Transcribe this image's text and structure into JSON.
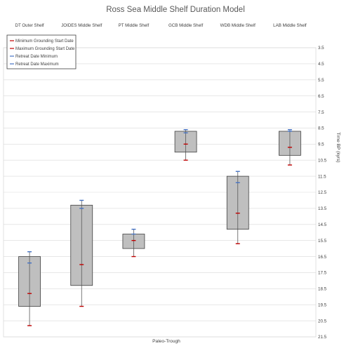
{
  "chart_data": {
    "type": "box",
    "title": "Ross Sea Middle Shelf Duration Model",
    "xlabel": "Paleo-Trough",
    "ylabel": "Time BP (kyrs)",
    "y_reversed": true,
    "y_axis_position": "right",
    "category_labels_position": "top",
    "ylim": [
      3.5,
      21.5
    ],
    "yticks": [
      "3.5",
      "4.5",
      "5.5",
      "6.5",
      "7.5",
      "8.5",
      "9.5",
      "10.5",
      "11.5",
      "12.5",
      "13.5",
      "14.5",
      "15.5",
      "16.5",
      "17.5",
      "18.5",
      "19.5",
      "20.5",
      "21.5"
    ],
    "grid": true,
    "legend": "top-left",
    "legend_entries": [
      {
        "label": "Minimum Grounding  Start Date",
        "color": "#c00000"
      },
      {
        "label": "Maximum  Grounding Start Date",
        "color": "#c00000"
      },
      {
        "label": "Retreat Date Minimum",
        "color": "#4472c4"
      },
      {
        "label": "Retreat Date Maximum",
        "color": "#4472c4"
      }
    ],
    "categories": [
      "DT Outer Shelf",
      "JOIDES Middle Shelf",
      "PT Middle Shelf",
      "GCB Middle Shelf",
      "WDB Middle Shelf",
      "LAB Middle Shelf"
    ],
    "boxes": [
      {
        "q1": 16.5,
        "q3": 19.6,
        "whisker_low": 16.2,
        "whisker_high": 20.8,
        "retreat_min": 16.2,
        "retreat_max": 16.9,
        "grounding_min": 20.8,
        "grounding_max": 18.8
      },
      {
        "q1": 13.3,
        "q3": 18.3,
        "whisker_low": 13.0,
        "whisker_high": 19.6,
        "retreat_min": 13.0,
        "retreat_max": 13.5,
        "grounding_min": 19.6,
        "grounding_max": 17.0
      },
      {
        "q1": 15.1,
        "q3": 16.0,
        "whisker_low": 14.8,
        "whisker_high": 16.5,
        "retreat_min": 14.8,
        "retreat_max": 15.1,
        "grounding_min": 16.5,
        "grounding_max": 15.5
      },
      {
        "q1": 8.7,
        "q3": 10.0,
        "whisker_low": 8.6,
        "whisker_high": 10.5,
        "retreat_min": 8.6,
        "retreat_max": 8.8,
        "grounding_min": 10.5,
        "grounding_max": 9.5
      },
      {
        "q1": 11.5,
        "q3": 14.8,
        "whisker_low": 11.2,
        "whisker_high": 15.7,
        "retreat_min": 11.2,
        "retreat_max": 11.9,
        "grounding_min": 15.7,
        "grounding_max": 13.8
      },
      {
        "q1": 8.7,
        "q3": 10.2,
        "whisker_low": 8.6,
        "whisker_high": 10.8,
        "retreat_min": 8.6,
        "retreat_max": 8.7,
        "grounding_min": 10.8,
        "grounding_max": 9.7
      }
    ],
    "colors": {
      "box_fill": "#bfbfbf",
      "box_stroke": "#404040",
      "grid": "#d9d9d9",
      "grounding": "#c00000",
      "retreat": "#4472c4"
    }
  }
}
